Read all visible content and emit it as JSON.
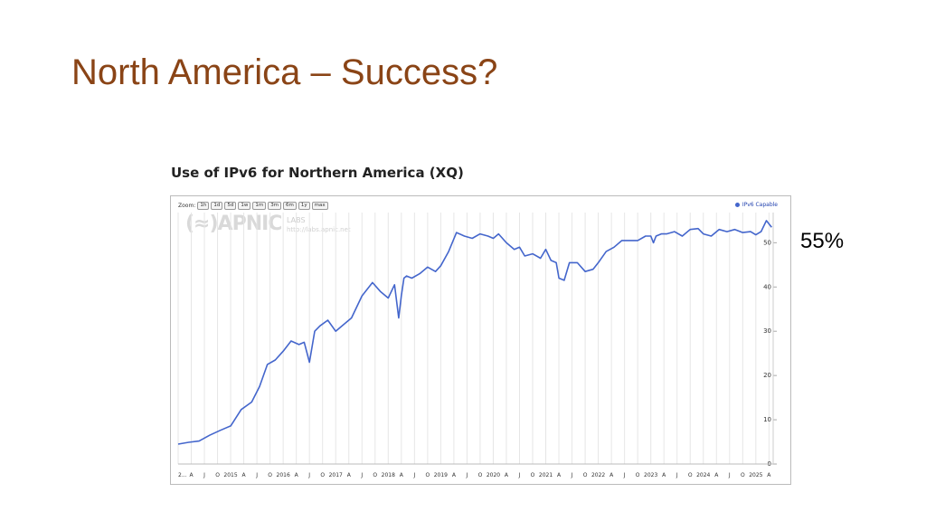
{
  "slide": {
    "title": "North America – Success?",
    "side_label": "55%"
  },
  "chart_data": {
    "type": "line",
    "title": "Use of IPv6 for Northern America (XQ)",
    "xlabel": "",
    "ylabel": "",
    "ylim": [
      0,
      56
    ],
    "yticks": [
      0,
      10,
      20,
      30,
      40,
      50
    ],
    "xticks": [
      "2...",
      "A",
      "J",
      "O",
      "2015",
      "A",
      "J",
      "O",
      "2016",
      "A",
      "J",
      "O",
      "2017",
      "A",
      "J",
      "O",
      "2018",
      "A",
      "J",
      "O",
      "2019",
      "A",
      "J",
      "O",
      "2020",
      "A",
      "J",
      "O",
      "2021",
      "A",
      "J",
      "O",
      "2022",
      "A",
      "J",
      "O",
      "2023",
      "A",
      "J",
      "O",
      "2024",
      "A",
      "J",
      "O",
      "2025",
      "A"
    ],
    "x_start": 2014.0,
    "x_end": 2025.33,
    "grid": true,
    "legend_position": "top-right",
    "zoom_label": "Zoom:",
    "zoom_buttons": [
      "1h",
      "1d",
      "5d",
      "1w",
      "1m",
      "3m",
      "6m",
      "1y",
      "max"
    ],
    "watermark": {
      "logo": "APNIC",
      "labs": "LABS",
      "url": "http://labs.apnic.net"
    },
    "series": [
      {
        "name": "IPv6 Capable",
        "color": "#4466cc",
        "x": [
          2014.0,
          2014.2,
          2014.4,
          2014.6,
          2014.8,
          2015.0,
          2015.2,
          2015.4,
          2015.55,
          2015.7,
          2015.85,
          2016.0,
          2016.15,
          2016.3,
          2016.4,
          2016.5,
          2016.6,
          2016.7,
          2016.85,
          2017.0,
          2017.15,
          2017.3,
          2017.5,
          2017.7,
          2017.85,
          2018.0,
          2018.12,
          2018.2,
          2018.25,
          2018.3,
          2018.35,
          2018.45,
          2018.6,
          2018.75,
          2018.9,
          2019.0,
          2019.15,
          2019.3,
          2019.45,
          2019.6,
          2019.75,
          2019.9,
          2020.0,
          2020.1,
          2020.25,
          2020.4,
          2020.5,
          2020.6,
          2020.75,
          2020.9,
          2021.0,
          2021.1,
          2021.2,
          2021.25,
          2021.35,
          2021.45,
          2021.6,
          2021.75,
          2021.9,
          2022.0,
          2022.15,
          2022.3,
          2022.45,
          2022.6,
          2022.75,
          2022.9,
          2023.0,
          2023.05,
          2023.1,
          2023.2,
          2023.3,
          2023.45,
          2023.6,
          2023.75,
          2023.9,
          2024.0,
          2024.15,
          2024.3,
          2024.45,
          2024.6,
          2024.75,
          2024.9,
          2025.0,
          2025.1,
          2025.2,
          2025.3
        ],
        "values": [
          4.5,
          4.9,
          5.2,
          6.5,
          7.6,
          8.6,
          12.3,
          14.0,
          17.5,
          22.5,
          23.5,
          25.5,
          27.8,
          27.0,
          27.5,
          23.0,
          30.0,
          31.2,
          32.5,
          30.0,
          31.5,
          33.0,
          38.0,
          41.0,
          39.0,
          37.5,
          40.5,
          33.0,
          38.0,
          42.0,
          42.5,
          42.0,
          43.0,
          44.5,
          43.5,
          44.8,
          48.0,
          52.3,
          51.5,
          51.0,
          52.0,
          51.5,
          51.0,
          52.0,
          50.0,
          48.5,
          49.0,
          47.0,
          47.5,
          46.5,
          48.5,
          46.0,
          45.5,
          42.0,
          41.5,
          45.5,
          45.5,
          43.5,
          44.0,
          45.5,
          48.0,
          49.0,
          50.5,
          50.5,
          50.5,
          51.5,
          51.5,
          50.0,
          51.5,
          52.0,
          52.0,
          52.5,
          51.5,
          53.0,
          53.2,
          52.0,
          51.5,
          53.0,
          52.5,
          53.0,
          52.3,
          52.5,
          51.8,
          52.5,
          55.0,
          53.5
        ]
      }
    ]
  }
}
